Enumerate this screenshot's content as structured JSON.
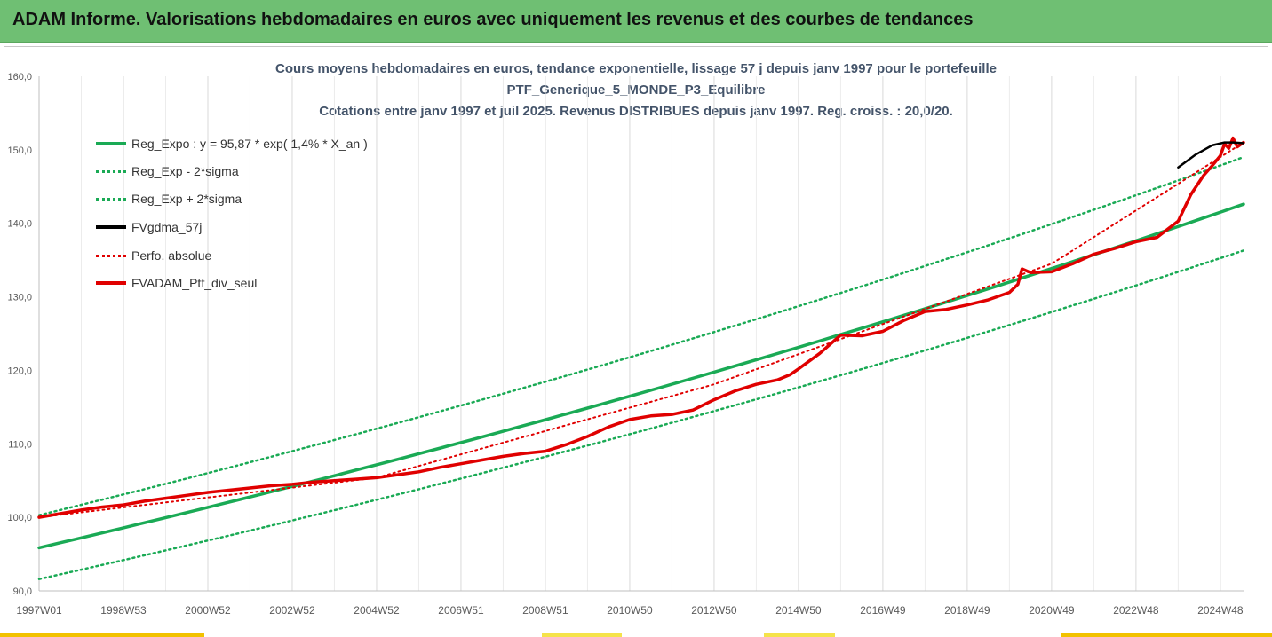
{
  "banner": {
    "title": "ADAM Informe. Valorisations hebdomadaires en euros avec uniquement les revenus et des courbes de tendances"
  },
  "chart_data": {
    "type": "line",
    "title_lines": [
      "Cours moyens hebdomadaires  en euros, tendance exponentielle, lissage 57 j depuis janv 1997 pour le portefeuille",
      "PTF_Generique_5_MONDE_P3_Equilibre",
      "Cotations  entre janv 1997 et juil 2025. Revenus DISTRIBUES depuis janv 1997. Reg. croiss. : 20,0/20."
    ],
    "xlabel": "",
    "ylabel": "",
    "x_tick_labels": [
      "1997W01",
      "1998W53",
      "2000W52",
      "2002W52",
      "2004W52",
      "2006W51",
      "2008W51",
      "2010W50",
      "2012W50",
      "2014W50",
      "2016W49",
      "2018W49",
      "2020W49",
      "2022W48",
      "2024W48"
    ],
    "x_tick_years": [
      1997.0,
      1999.0,
      2001.0,
      2003.0,
      2005.0,
      2007.0,
      2009.0,
      2011.0,
      2013.0,
      2015.0,
      2017.0,
      2019.0,
      2021.0,
      2023.0,
      2025.0
    ],
    "xlim": [
      1997.0,
      2025.55
    ],
    "ylim": [
      90,
      160
    ],
    "y_ticks": [
      90,
      100,
      110,
      120,
      130,
      140,
      150,
      160
    ],
    "y_tick_labels": [
      "90,0",
      "100,0",
      "110,0",
      "120,0",
      "130,0",
      "140,0",
      "150,0",
      "160,0"
    ],
    "grid": {
      "vertical": true,
      "horizontal": false
    },
    "legend_position": "top-left",
    "legend": [
      {
        "label": "Reg_Expo : y = 95,87 * exp( 1,4% *  X_an )",
        "color": "#1aaa55",
        "style": "solid"
      },
      {
        "label": "Reg_Exp - 2*sigma",
        "color": "#1aaa55",
        "style": "dotted"
      },
      {
        "label": "Reg_Exp + 2*sigma",
        "color": "#1aaa55",
        "style": "dotted"
      },
      {
        "label": "FVgdma_57j",
        "color": "#000000",
        "style": "solid"
      },
      {
        "label": "Perfo. absolue",
        "color": "#e00000",
        "style": "dotted"
      },
      {
        "label": "FVADAM_Ptf_div_seul",
        "color": "#e00000",
        "style": "solid"
      }
    ],
    "series": [
      {
        "name": "Reg_Expo : y = 95,87 * exp( 1,4% *  X_an )",
        "color": "#1aaa55",
        "style": "solid",
        "width": 3.5,
        "x": [
          1997.0,
          2025.55
        ],
        "values": [
          95.87,
          142.6
        ],
        "curve": "exp"
      },
      {
        "name": "Reg_Exp - 2*sigma",
        "color": "#1aaa55",
        "style": "dotted",
        "width": 2.5,
        "x": [
          1997.0,
          2025.55
        ],
        "values": [
          91.6,
          136.3
        ],
        "curve": "exp"
      },
      {
        "name": "Reg_Exp + 2*sigma",
        "color": "#1aaa55",
        "style": "dotted",
        "width": 2.5,
        "x": [
          1997.0,
          2025.55
        ],
        "values": [
          100.3,
          149.0
        ],
        "curve": "exp"
      },
      {
        "name": "FVgdma_57j",
        "color": "#000000",
        "style": "solid",
        "width": 2.5,
        "x": [
          2024.0,
          2024.4,
          2024.8,
          2025.1,
          2025.3,
          2025.55
        ],
        "values": [
          147.6,
          149.3,
          150.6,
          151.0,
          151.0,
          150.9
        ]
      },
      {
        "name": "Perfo. absolue",
        "color": "#e00000",
        "style": "dotted",
        "width": 2,
        "x": [
          1997.0,
          2005.0,
          2013.0,
          2021.0,
          2025.55
        ],
        "values": [
          100.0,
          105.4,
          118.1,
          134.5,
          151.0
        ]
      },
      {
        "name": "FVADAM_Ptf_div_seul",
        "color": "#e00000",
        "style": "solid",
        "width": 3.5,
        "x": [
          1997.0,
          1997.5,
          1998.0,
          1998.5,
          1999.0,
          1999.5,
          2000.0,
          2000.5,
          2001.0,
          2001.5,
          2002.0,
          2002.5,
          2003.0,
          2003.5,
          2004.0,
          2004.5,
          2005.0,
          2005.5,
          2006.0,
          2006.5,
          2007.0,
          2007.5,
          2008.0,
          2008.5,
          2009.0,
          2009.5,
          2010.0,
          2010.5,
          2011.0,
          2011.5,
          2012.0,
          2012.5,
          2013.0,
          2013.5,
          2014.0,
          2014.5,
          2014.8,
          2015.0,
          2015.5,
          2016.0,
          2016.5,
          2017.0,
          2017.5,
          2018.0,
          2018.5,
          2019.0,
          2019.5,
          2020.0,
          2020.2,
          2020.3,
          2020.5,
          2021.0,
          2021.5,
          2022.0,
          2022.5,
          2023.0,
          2023.5,
          2024.0,
          2024.3,
          2024.6,
          2024.8,
          2025.0,
          2025.1,
          2025.2,
          2025.3,
          2025.4,
          2025.55
        ],
        "values": [
          100.0,
          100.5,
          101.0,
          101.4,
          101.7,
          102.2,
          102.6,
          103.0,
          103.4,
          103.7,
          104.0,
          104.3,
          104.5,
          104.8,
          105.0,
          105.2,
          105.4,
          105.8,
          106.2,
          106.8,
          107.3,
          107.8,
          108.3,
          108.7,
          109.0,
          109.9,
          111.0,
          112.3,
          113.3,
          113.8,
          114.0,
          114.6,
          116.0,
          117.2,
          118.1,
          118.7,
          119.4,
          120.2,
          122.3,
          124.8,
          124.7,
          125.3,
          126.8,
          128.0,
          128.3,
          128.9,
          129.6,
          130.6,
          131.7,
          133.8,
          133.3,
          133.4,
          134.5,
          135.8,
          136.6,
          137.5,
          138.1,
          140.3,
          143.9,
          146.5,
          147.8,
          149.2,
          150.8,
          150.2,
          151.6,
          150.4,
          151.0
        ]
      }
    ]
  }
}
